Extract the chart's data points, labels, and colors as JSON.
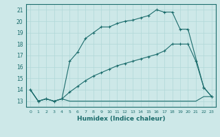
{
  "xlabel": "Humidex (Indice chaleur)",
  "bg_color": "#cde8e8",
  "line_color": "#1a6b6b",
  "grid_color": "#b0d8d8",
  "xlim": [
    -0.5,
    23.5
  ],
  "ylim": [
    12.5,
    21.5
  ],
  "xticks": [
    0,
    1,
    2,
    3,
    4,
    5,
    6,
    7,
    8,
    9,
    10,
    11,
    12,
    13,
    14,
    15,
    16,
    17,
    18,
    19,
    20,
    21,
    22,
    23
  ],
  "yticks": [
    13,
    14,
    15,
    16,
    17,
    18,
    19,
    20,
    21
  ],
  "curve1_x": [
    0,
    1,
    2,
    3,
    4,
    5,
    6,
    7,
    8,
    9,
    10,
    11,
    12,
    13,
    14,
    15,
    16,
    17,
    18,
    19,
    20,
    22,
    23
  ],
  "curve1_y": [
    14,
    13,
    13.2,
    13,
    13.2,
    16.5,
    17.3,
    18.5,
    19.0,
    19.5,
    19.5,
    19.8,
    20.0,
    20.1,
    20.3,
    20.5,
    21.0,
    20.8,
    20.8,
    19.3,
    19.3,
    14.2,
    13.4
  ],
  "curve2_x": [
    0,
    1,
    2,
    3,
    4,
    5,
    6,
    7,
    8,
    9,
    10,
    11,
    12,
    13,
    14,
    15,
    16,
    17,
    18,
    19,
    20,
    21,
    22,
    23
  ],
  "curve2_y": [
    14,
    13,
    13.2,
    13,
    13.2,
    13.8,
    14.3,
    14.8,
    15.2,
    15.5,
    15.8,
    16.1,
    16.3,
    16.5,
    16.7,
    16.9,
    17.1,
    17.4,
    18.0,
    18.0,
    18.0,
    16.5,
    14.2,
    13.4
  ],
  "curve3_x": [
    0,
    1,
    2,
    3,
    4,
    5,
    6,
    7,
    8,
    9,
    10,
    11,
    12,
    13,
    14,
    15,
    16,
    17,
    18,
    19,
    20,
    21,
    22,
    23
  ],
  "curve3_y": [
    14,
    13,
    13.2,
    13,
    13.2,
    13.0,
    13.0,
    13.0,
    13.0,
    13.0,
    13.0,
    13.0,
    13.0,
    13.0,
    13.0,
    13.0,
    13.0,
    13.0,
    13.0,
    13.0,
    13.0,
    13.0,
    13.4,
    13.4
  ]
}
